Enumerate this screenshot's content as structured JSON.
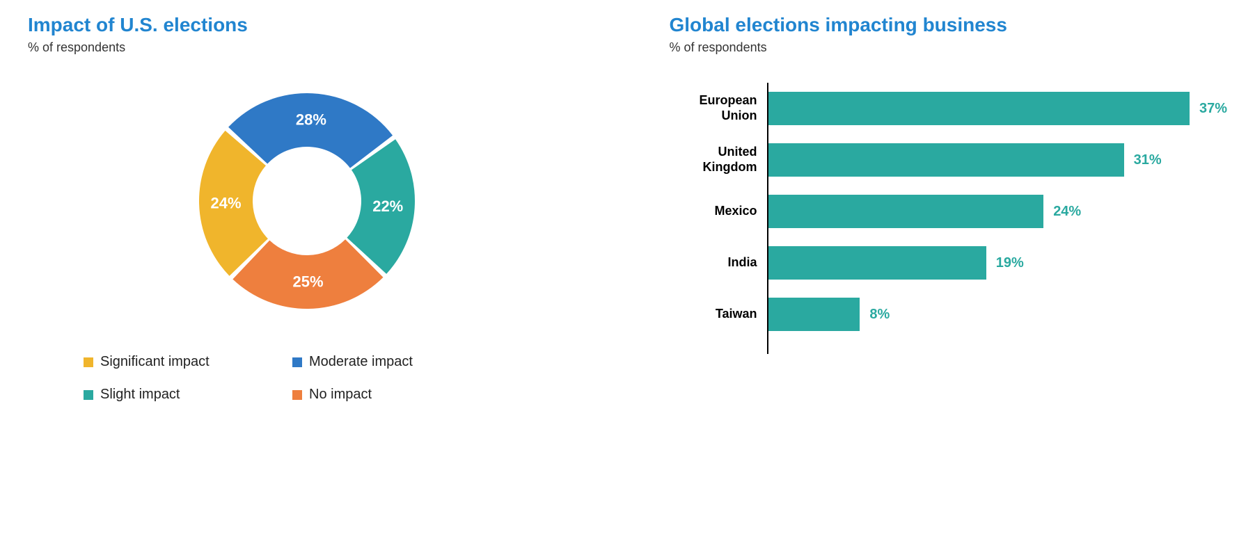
{
  "left_chart": {
    "title": "Impact of U.S. elections",
    "title_color": "#2185d0",
    "subtitle": "% of respondents",
    "type": "donut",
    "inner_radius": 78,
    "outer_radius": 155,
    "gap_deg": 2.5,
    "slices": [
      {
        "label": "Moderate impact",
        "value": 28,
        "color": "#2f79c6",
        "text": "28%"
      },
      {
        "label": "Slight impact",
        "value": 22,
        "color": "#2aa9a0",
        "text": "22%"
      },
      {
        "label": "No impact",
        "value": 25,
        "color": "#ee7f3e",
        "text": "25%"
      },
      {
        "label": "Significant impact",
        "value": 24,
        "color": "#f0b52c",
        "text": "24%"
      }
    ],
    "legend_order": [
      {
        "label": "Significant impact",
        "color": "#f0b52c"
      },
      {
        "label": "Moderate impact",
        "color": "#2f79c6"
      },
      {
        "label": "Slight impact",
        "color": "#2aa9a0"
      },
      {
        "label": "No impact",
        "color": "#ee7f3e"
      }
    ],
    "start_angle_deg": -48
  },
  "right_chart": {
    "title": "Global elections impacting business",
    "title_color": "#2185d0",
    "subtitle": "% of respondents",
    "type": "bar-horizontal",
    "bar_color": "#2aa9a0",
    "value_color": "#2aa9a0",
    "max_value": 40,
    "bars": [
      {
        "label": "European Union",
        "value": 37,
        "text": "37%"
      },
      {
        "label": "United Kingdom",
        "value": 31,
        "text": "31%"
      },
      {
        "label": "Mexico",
        "value": 24,
        "text": "24%"
      },
      {
        "label": "India",
        "value": 19,
        "text": "19%"
      },
      {
        "label": "Taiwan",
        "value": 8,
        "text": "8%"
      }
    ]
  }
}
